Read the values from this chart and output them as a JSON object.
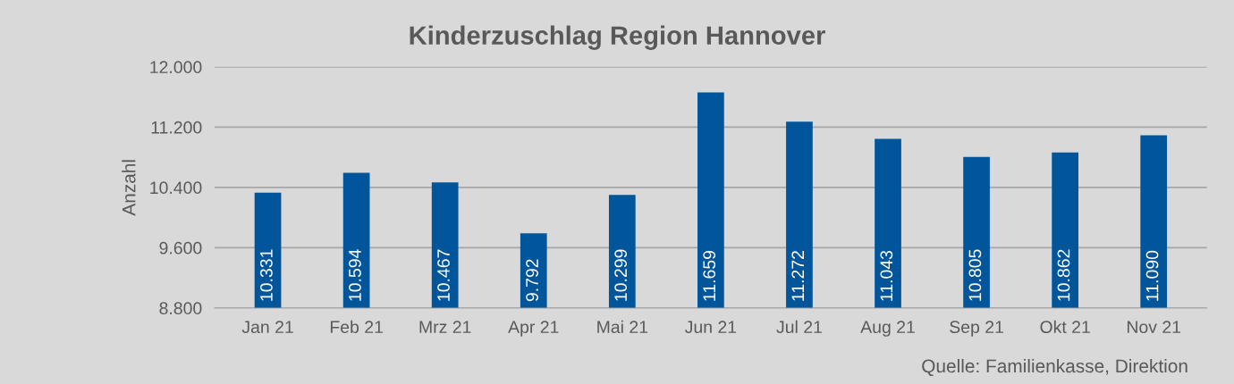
{
  "chart_data": {
    "type": "bar",
    "title": "Kinderzuschlag Region Hannover",
    "ylabel": "Anzahl",
    "categories": [
      "Jan 21",
      "Feb 21",
      "Mrz 21",
      "Apr 21",
      "Mai 21",
      "Jun 21",
      "Jul 21",
      "Aug 21",
      "Sep 21",
      "Okt 21",
      "Nov 21"
    ],
    "values": [
      10331,
      10594,
      10467,
      9792,
      10299,
      11659,
      11272,
      11043,
      10805,
      10862,
      11090
    ],
    "value_labels": [
      "10.331",
      "10.594",
      "10.467",
      "9.792",
      "10.299",
      "11.659",
      "11.272",
      "11.043",
      "10.805",
      "10.862",
      "11.090"
    ],
    "color": "#00559b",
    "ylim": [
      8800,
      12000
    ],
    "yticks": [
      {
        "value": 8800,
        "label": "8.800"
      },
      {
        "value": 9600,
        "label": "9.600"
      },
      {
        "value": 10400,
        "label": "10.400"
      },
      {
        "value": 11200,
        "label": "11.200"
      },
      {
        "value": 12000,
        "label": "12.000"
      }
    ],
    "grid": "y",
    "legend": false,
    "annotations": [
      "Quelle: Familienkasse, Direktion"
    ]
  }
}
